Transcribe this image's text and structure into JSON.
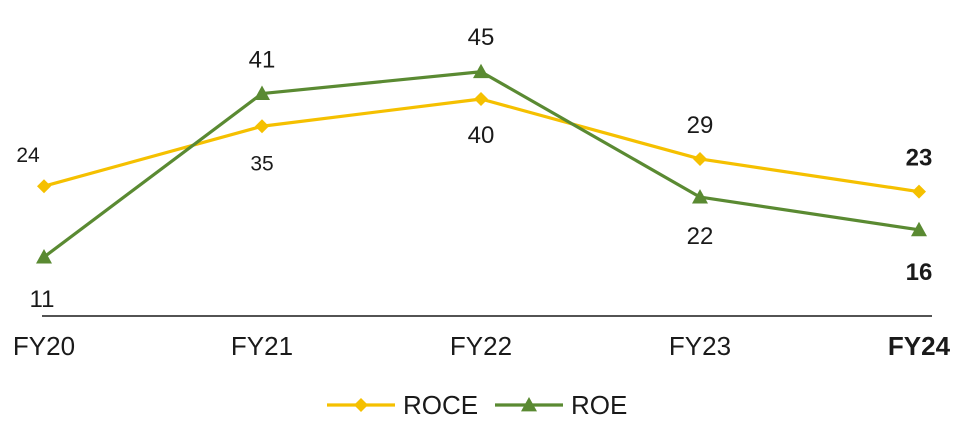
{
  "chart_data": {
    "type": "line",
    "title": "",
    "xlabel": "",
    "ylabel": "",
    "categories": [
      "FY20",
      "FY21",
      "FY22",
      "FY23",
      "FY24"
    ],
    "highlight_category": "FY24",
    "ylim": [
      0,
      50
    ],
    "grid": false,
    "legend_position": "bottom-center",
    "series": [
      {
        "name": "ROCE",
        "values": [
          24,
          35,
          40,
          29,
          23
        ],
        "color": "#F5C000",
        "marker": "diamond"
      },
      {
        "name": "ROE",
        "values": [
          11,
          41,
          45,
          22,
          16
        ],
        "color": "#5A8A32",
        "marker": "triangle"
      }
    ]
  }
}
